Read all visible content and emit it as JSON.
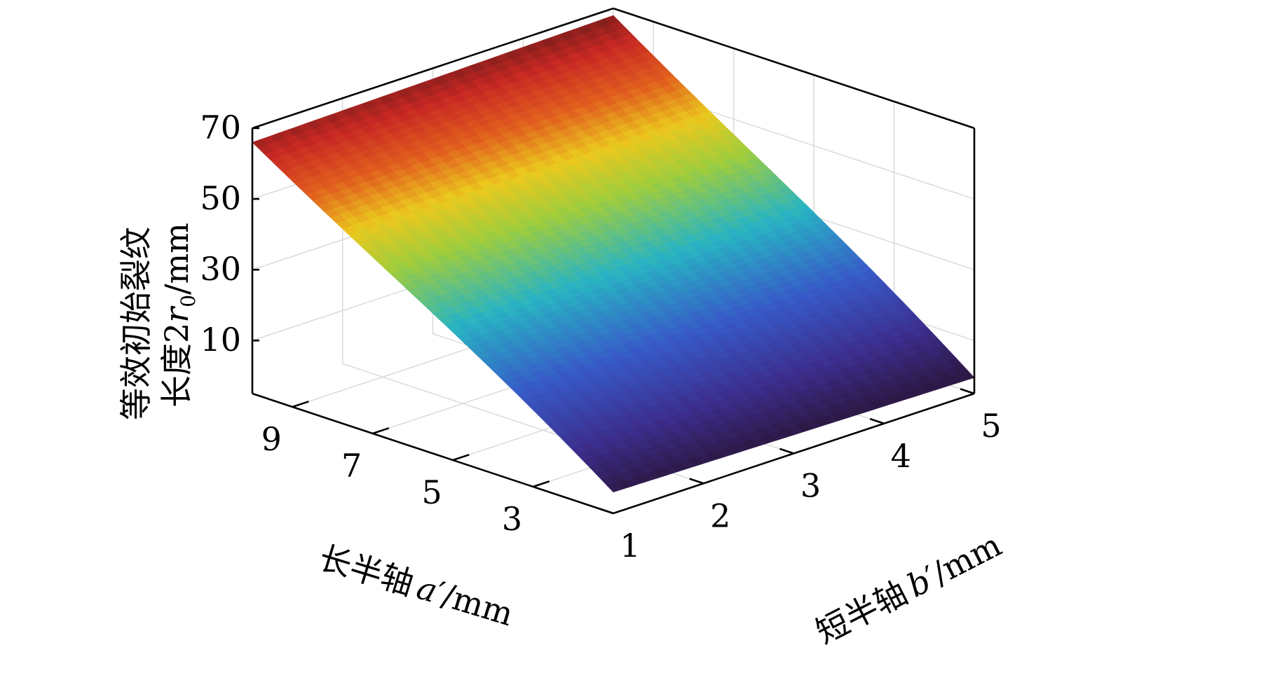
{
  "chart_data": {
    "type": "surface",
    "xlabel": {
      "prefix": "长半轴",
      "var": "a",
      "suffix": "′/mm"
    },
    "ylabel": {
      "prefix": "短半轴",
      "var": "b",
      "suffix": "′/mm"
    },
    "zlabel": {
      "line1": "等效初始裂纹",
      "line2_prefix": "长度2",
      "var": "r",
      "sub": "0",
      "suffix": "/mm"
    },
    "x_ticks": [
      "3",
      "5",
      "7",
      "9"
    ],
    "y_ticks": [
      "1",
      "2",
      "3",
      "4",
      "5"
    ],
    "z_ticks": [
      "10",
      "30",
      "50",
      "70"
    ],
    "xlim": [
      1,
      10
    ],
    "ylim": [
      1,
      5
    ],
    "zlim": [
      -5,
      70
    ],
    "grid": true,
    "colormap": "parula-like (blue low to red high)",
    "surface_corners": [
      {
        "a": 10,
        "b": 1,
        "z": 66
      },
      {
        "a": 10,
        "b": 5,
        "z": 68
      },
      {
        "a": 1,
        "b": 1,
        "z": 2
      },
      {
        "a": 1,
        "b": 5,
        "z": 0
      }
    ]
  }
}
